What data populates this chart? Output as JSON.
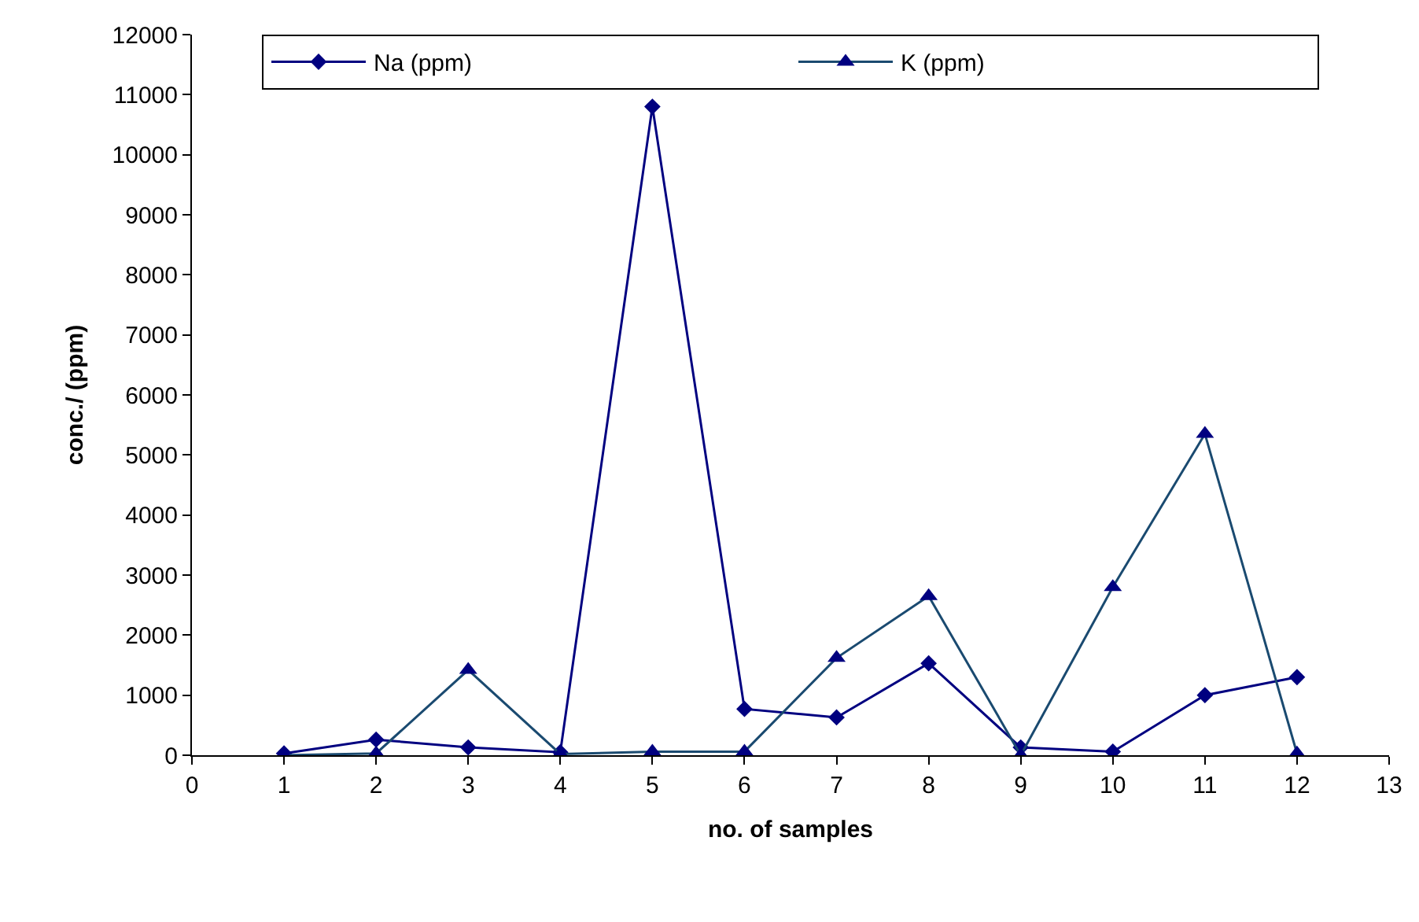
{
  "chart_data": {
    "type": "line",
    "xlabel": "no. of samples",
    "ylabel": "conc./ (ppm)",
    "x": [
      1,
      2,
      3,
      4,
      5,
      6,
      7,
      8,
      9,
      10,
      11,
      12
    ],
    "xlim": [
      0,
      13
    ],
    "xticks": [
      0,
      1,
      2,
      3,
      4,
      5,
      6,
      7,
      8,
      9,
      10,
      11,
      12,
      13
    ],
    "ylim": [
      0,
      12000
    ],
    "yticks": [
      0,
      1000,
      2000,
      3000,
      4000,
      5000,
      6000,
      7000,
      8000,
      9000,
      10000,
      11000,
      12000
    ],
    "grid": false,
    "legend": "top",
    "series": [
      {
        "name": "Na (ppm)",
        "color": "#000080",
        "marker": "diamond",
        "values": [
          30,
          260,
          130,
          50,
          10800,
          770,
          630,
          1530,
          130,
          60,
          1000,
          1300
        ]
      },
      {
        "name": "K (ppm)",
        "color": "#1a4a70",
        "marker": "triangle",
        "values": [
          0,
          30,
          1420,
          20,
          60,
          60,
          1620,
          2650,
          0,
          2800,
          5350,
          30
        ]
      }
    ]
  }
}
